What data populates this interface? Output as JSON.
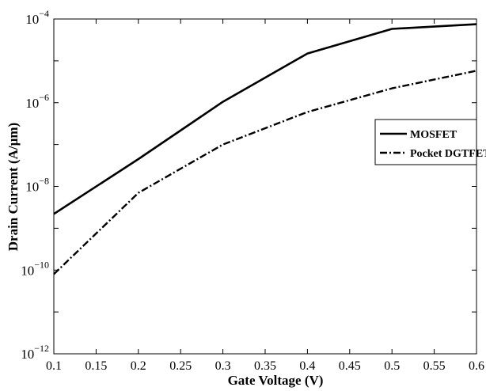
{
  "chart_data": {
    "type": "line",
    "title": "",
    "xlabel": "Gate Voltage (V)",
    "ylabel": "Drain Current (A/µm)",
    "xlim": [
      0.1,
      0.6
    ],
    "ylim": [
      1e-12,
      0.0001
    ],
    "y_scale": "log",
    "grid": false,
    "legend_position": "right",
    "x_ticks": [
      {
        "value": 0.1,
        "label": "0.1"
      },
      {
        "value": 0.15,
        "label": "0.15"
      },
      {
        "value": 0.2,
        "label": "0.2"
      },
      {
        "value": 0.25,
        "label": "0.25"
      },
      {
        "value": 0.3,
        "label": "0.3"
      },
      {
        "value": 0.35,
        "label": "0.35"
      },
      {
        "value": 0.4,
        "label": "0.4"
      },
      {
        "value": 0.45,
        "label": "0.45"
      },
      {
        "value": 0.5,
        "label": "0.5"
      },
      {
        "value": 0.55,
        "label": "0.55"
      },
      {
        "value": 0.6,
        "label": "0.6"
      }
    ],
    "y_ticks": [
      {
        "value": 1e-12,
        "base": "10",
        "exponent": "−12"
      },
      {
        "value": 1e-10,
        "base": "10",
        "exponent": "−10"
      },
      {
        "value": 1e-08,
        "base": "10",
        "exponent": "−8"
      },
      {
        "value": 1e-06,
        "base": "10",
        "exponent": "−6"
      },
      {
        "value": 0.0001,
        "base": "10",
        "exponent": "−4"
      }
    ],
    "series": [
      {
        "name": "MOSFET",
        "style": "solid",
        "color": "#000000",
        "x": [
          0.1,
          0.2,
          0.3,
          0.4,
          0.5,
          0.6
        ],
        "y": [
          2.2e-09,
          4.5e-08,
          1.05e-06,
          1.5e-05,
          5.8e-05,
          7.5e-05
        ]
      },
      {
        "name": "Pocket DGTFET",
        "style": "dashdot",
        "color": "#000000",
        "x": [
          0.1,
          0.2,
          0.3,
          0.4,
          0.5,
          0.6
        ],
        "y": [
          8e-11,
          7e-09,
          1e-07,
          6e-07,
          2.2e-06,
          5.8e-06
        ]
      }
    ]
  }
}
